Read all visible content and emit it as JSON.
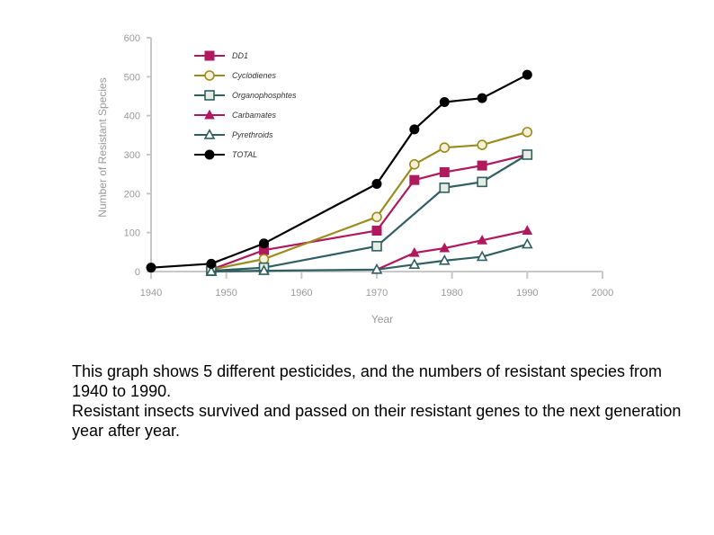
{
  "chart_data": {
    "type": "line",
    "xlabel": "Year",
    "ylabel": "Number of Resistant Species",
    "xlim": [
      1940,
      2000
    ],
    "ylim": [
      0,
      600
    ],
    "xticks": [
      "1940",
      "1950",
      "1960",
      "1970",
      "1980",
      "1990",
      "2000"
    ],
    "yticks": [
      "0",
      "100",
      "200",
      "300",
      "400",
      "500",
      "600"
    ],
    "legend_position": "top-left",
    "grid": false,
    "series": [
      {
        "name": "DD1",
        "color": "#b0195e",
        "marker": "square-filled",
        "points": [
          [
            1948,
            5
          ],
          [
            1955,
            55
          ],
          [
            1970,
            105
          ],
          [
            1975,
            235
          ],
          [
            1979,
            255
          ],
          [
            1984,
            272
          ],
          [
            1990,
            300
          ]
        ]
      },
      {
        "name": "Cyclodienes",
        "color": "#9c8b1e",
        "marker": "circle-open",
        "points": [
          [
            1948,
            5
          ],
          [
            1955,
            32
          ],
          [
            1970,
            140
          ],
          [
            1975,
            275
          ],
          [
            1979,
            318
          ],
          [
            1984,
            325
          ],
          [
            1990,
            358
          ]
        ]
      },
      {
        "name": "Organophosphtes",
        "color": "#2f5f63",
        "marker": "square-open",
        "points": [
          [
            1948,
            2
          ],
          [
            1955,
            10
          ],
          [
            1970,
            65
          ],
          [
            1979,
            215
          ],
          [
            1984,
            230
          ],
          [
            1990,
            300
          ]
        ]
      },
      {
        "name": "Carbamates",
        "color": "#b0195e",
        "marker": "triangle-filled",
        "points": [
          [
            1970,
            5
          ],
          [
            1975,
            48
          ],
          [
            1979,
            60
          ],
          [
            1984,
            80
          ],
          [
            1990,
            105
          ]
        ]
      },
      {
        "name": "Pyrethroids",
        "color": "#2f5f63",
        "marker": "triangle-open",
        "points": [
          [
            1948,
            0
          ],
          [
            1955,
            2
          ],
          [
            1970,
            5
          ],
          [
            1975,
            18
          ],
          [
            1979,
            28
          ],
          [
            1984,
            38
          ],
          [
            1990,
            70
          ]
        ]
      },
      {
        "name": "TOTAL",
        "color": "#000000",
        "marker": "circle-filled",
        "points": [
          [
            1940,
            10
          ],
          [
            1948,
            20
          ],
          [
            1955,
            72
          ],
          [
            1970,
            225
          ],
          [
            1975,
            365
          ],
          [
            1979,
            435
          ],
          [
            1984,
            445
          ],
          [
            1990,
            505
          ]
        ]
      }
    ]
  },
  "caption": {
    "line1": "This graph shows 5 different pesticides, and the numbers of resistant species from 1940 to 1990.",
    "line2": "Resistant insects survived and passed on their resistant genes to the next generation year after year."
  }
}
